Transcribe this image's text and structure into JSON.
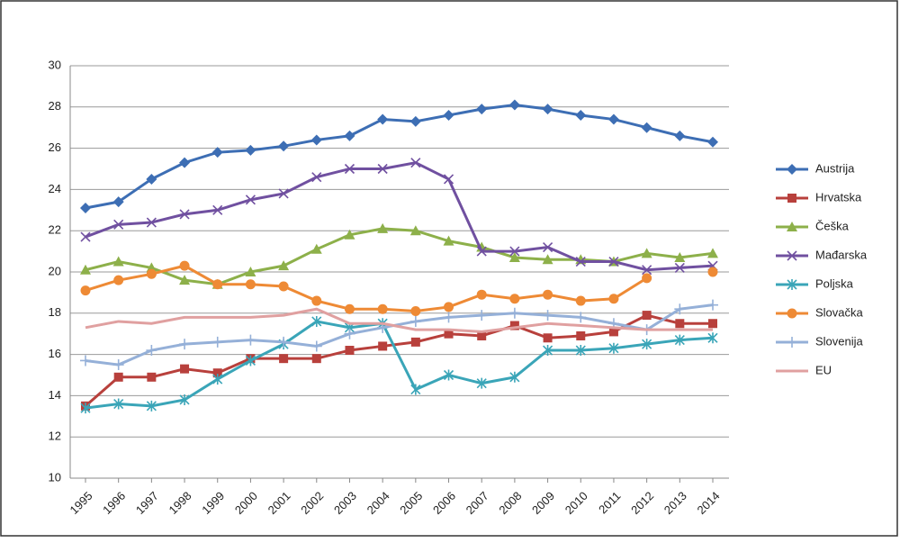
{
  "chart_data": {
    "type": "line",
    "categories": [
      "1995",
      "1996",
      "1997",
      "1998",
      "1999",
      "2000",
      "2001",
      "2002",
      "2003",
      "2004",
      "2005",
      "2006",
      "2007",
      "2008",
      "2009",
      "2010",
      "2011",
      "2012",
      "2013",
      "2014"
    ],
    "ylim": [
      10,
      30
    ],
    "yticks": [
      10,
      12,
      14,
      16,
      18,
      20,
      22,
      24,
      26,
      28,
      30
    ],
    "grid": true,
    "legend": "right",
    "series": [
      {
        "name": "Austrija",
        "color": "#3d6eb4",
        "marker": "diamond",
        "values": [
          23.1,
          23.4,
          24.5,
          25.3,
          25.8,
          25.9,
          26.1,
          26.4,
          26.6,
          27.4,
          27.3,
          27.6,
          27.9,
          28.1,
          27.9,
          27.6,
          27.4,
          27.0,
          26.6,
          26.3
        ]
      },
      {
        "name": "Hrvatska",
        "color": "#b8403c",
        "marker": "square",
        "values": [
          13.5,
          14.9,
          14.9,
          15.3,
          15.1,
          15.8,
          15.8,
          15.8,
          16.2,
          16.4,
          16.6,
          17.0,
          16.9,
          17.4,
          16.8,
          16.9,
          17.1,
          17.9,
          17.5,
          17.5
        ]
      },
      {
        "name": "Češka",
        "color": "#8db04a",
        "marker": "triangle",
        "values": [
          20.1,
          20.5,
          20.2,
          19.6,
          19.4,
          20.0,
          20.3,
          21.1,
          21.8,
          22.1,
          22.0,
          21.5,
          21.2,
          20.7,
          20.6,
          20.6,
          20.5,
          20.9,
          20.7,
          20.9
        ]
      },
      {
        "name": "Mađarska",
        "color": "#7050a0",
        "marker": "x",
        "values": [
          21.7,
          22.3,
          22.4,
          22.8,
          23.0,
          23.5,
          23.8,
          24.6,
          25.0,
          25.0,
          25.3,
          24.5,
          21.0,
          21.0,
          21.2,
          20.5,
          20.5,
          20.1,
          20.2,
          20.3
        ]
      },
      {
        "name": "Poljska",
        "color": "#3aa5b8",
        "marker": "star",
        "values": [
          13.4,
          13.6,
          13.5,
          13.8,
          14.8,
          15.7,
          16.5,
          17.6,
          17.3,
          17.5,
          14.3,
          15.0,
          14.6,
          14.9,
          16.2,
          16.2,
          16.3,
          16.5,
          16.7,
          16.8
        ]
      },
      {
        "name": "Slovačka",
        "color": "#ee8a35",
        "marker": "circle",
        "values": [
          19.1,
          19.6,
          19.9,
          20.3,
          19.4,
          19.4,
          19.3,
          18.6,
          18.2,
          18.2,
          18.1,
          18.3,
          18.9,
          18.7,
          18.9,
          18.6,
          18.7,
          19.7,
          null,
          20.0
        ]
      },
      {
        "name": "Slovenija",
        "color": "#95b0d8",
        "marker": "plus",
        "values": [
          15.7,
          15.5,
          16.2,
          16.5,
          16.6,
          16.7,
          16.6,
          16.4,
          17.0,
          17.3,
          17.6,
          17.8,
          17.9,
          18.0,
          17.9,
          17.8,
          17.5,
          17.2,
          18.2,
          18.4
        ]
      },
      {
        "name": "EU",
        "color": "#e0a0a0",
        "marker": "none",
        "values": [
          17.3,
          17.6,
          17.5,
          17.8,
          17.8,
          17.8,
          17.9,
          18.2,
          17.5,
          17.5,
          17.2,
          17.2,
          17.1,
          17.3,
          17.5,
          17.4,
          17.3,
          17.2,
          17.2,
          17.2
        ]
      }
    ]
  }
}
